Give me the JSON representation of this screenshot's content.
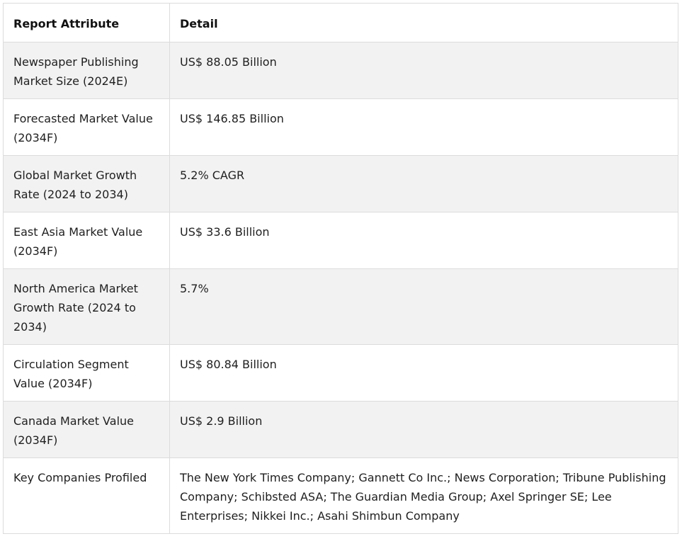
{
  "table": {
    "headers": [
      "Report Attribute",
      "Detail"
    ],
    "rows": [
      {
        "attribute": "Newspaper Publishing Market Size (2024E)",
        "detail": "US$ 88.05 Billion"
      },
      {
        "attribute": "Forecasted Market Value (2034F)",
        "detail": "US$ 146.85 Billion"
      },
      {
        "attribute": "Global Market Growth Rate (2024 to 2034)",
        "detail": "5.2% CAGR"
      },
      {
        "attribute": "East Asia Market Value (2034F)",
        "detail": "US$ 33.6 Billion"
      },
      {
        "attribute": "North America Market Growth Rate (2024 to 2034)",
        "detail": "5.7%"
      },
      {
        "attribute": "Circulation Segment Value (2034F)",
        "detail": "US$ 80.84 Billion"
      },
      {
        "attribute": "Canada Market Value (2034F)",
        "detail": "US$ 2.9 Billion"
      },
      {
        "attribute": "Key Companies Profiled",
        "detail": "The New York Times Company; Gannett Co Inc.; News Corporation; Tribune Publishing Company; Schibsted ASA; The Guardian Media Group; Axel Springer SE; Lee Enterprises; Nikkei Inc.; Asahi Shimbun Company"
      }
    ]
  },
  "colors": {
    "border": "#dcdcdc",
    "stripe": "#f2f2f2",
    "text": "#1f1f1f"
  }
}
